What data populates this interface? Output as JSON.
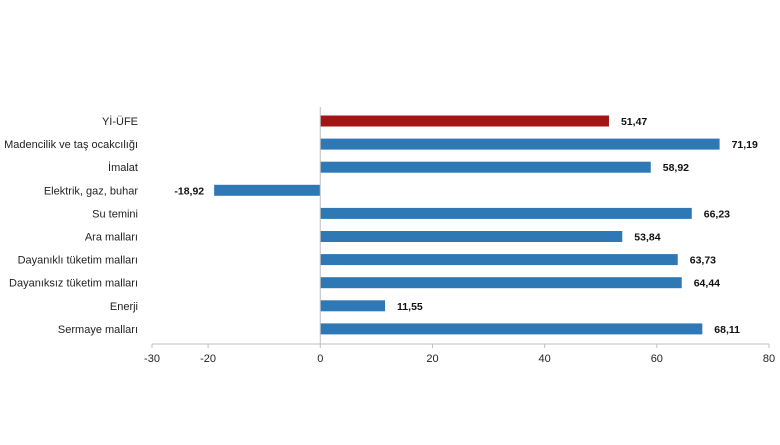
{
  "chart_data": {
    "type": "bar",
    "orientation": "horizontal",
    "categories": [
      "Yİ-ÜFE",
      "Madencilik ve taş ocakcılığı",
      "İmalat",
      "Elektrik, gaz, buhar",
      "Su temini",
      "Ara malları",
      "Dayanıklı tüketim malları",
      "Dayanıksız tüketim malları",
      "Enerji",
      "Sermaye malları"
    ],
    "values": [
      51.47,
      71.19,
      58.92,
      -18.92,
      66.23,
      53.84,
      63.73,
      64.44,
      11.55,
      68.11
    ],
    "value_labels": [
      "51,47",
      "71,19",
      "58,92",
      "-18,92",
      "66,23",
      "53,84",
      "63,73",
      "64,44",
      "11,55",
      "68,11"
    ],
    "highlight_index": 0,
    "xlim": [
      -30,
      80
    ],
    "xticks": [
      "-30",
      "-20",
      "0",
      "20",
      "40",
      "60",
      "80"
    ],
    "xtick_values": [
      -30,
      -20,
      0,
      20,
      40,
      60,
      80
    ],
    "grid": false,
    "legend": "none",
    "colors": {
      "highlight": "#a31515",
      "default": "#2e79b5",
      "axis": "#bfbfbf"
    }
  }
}
